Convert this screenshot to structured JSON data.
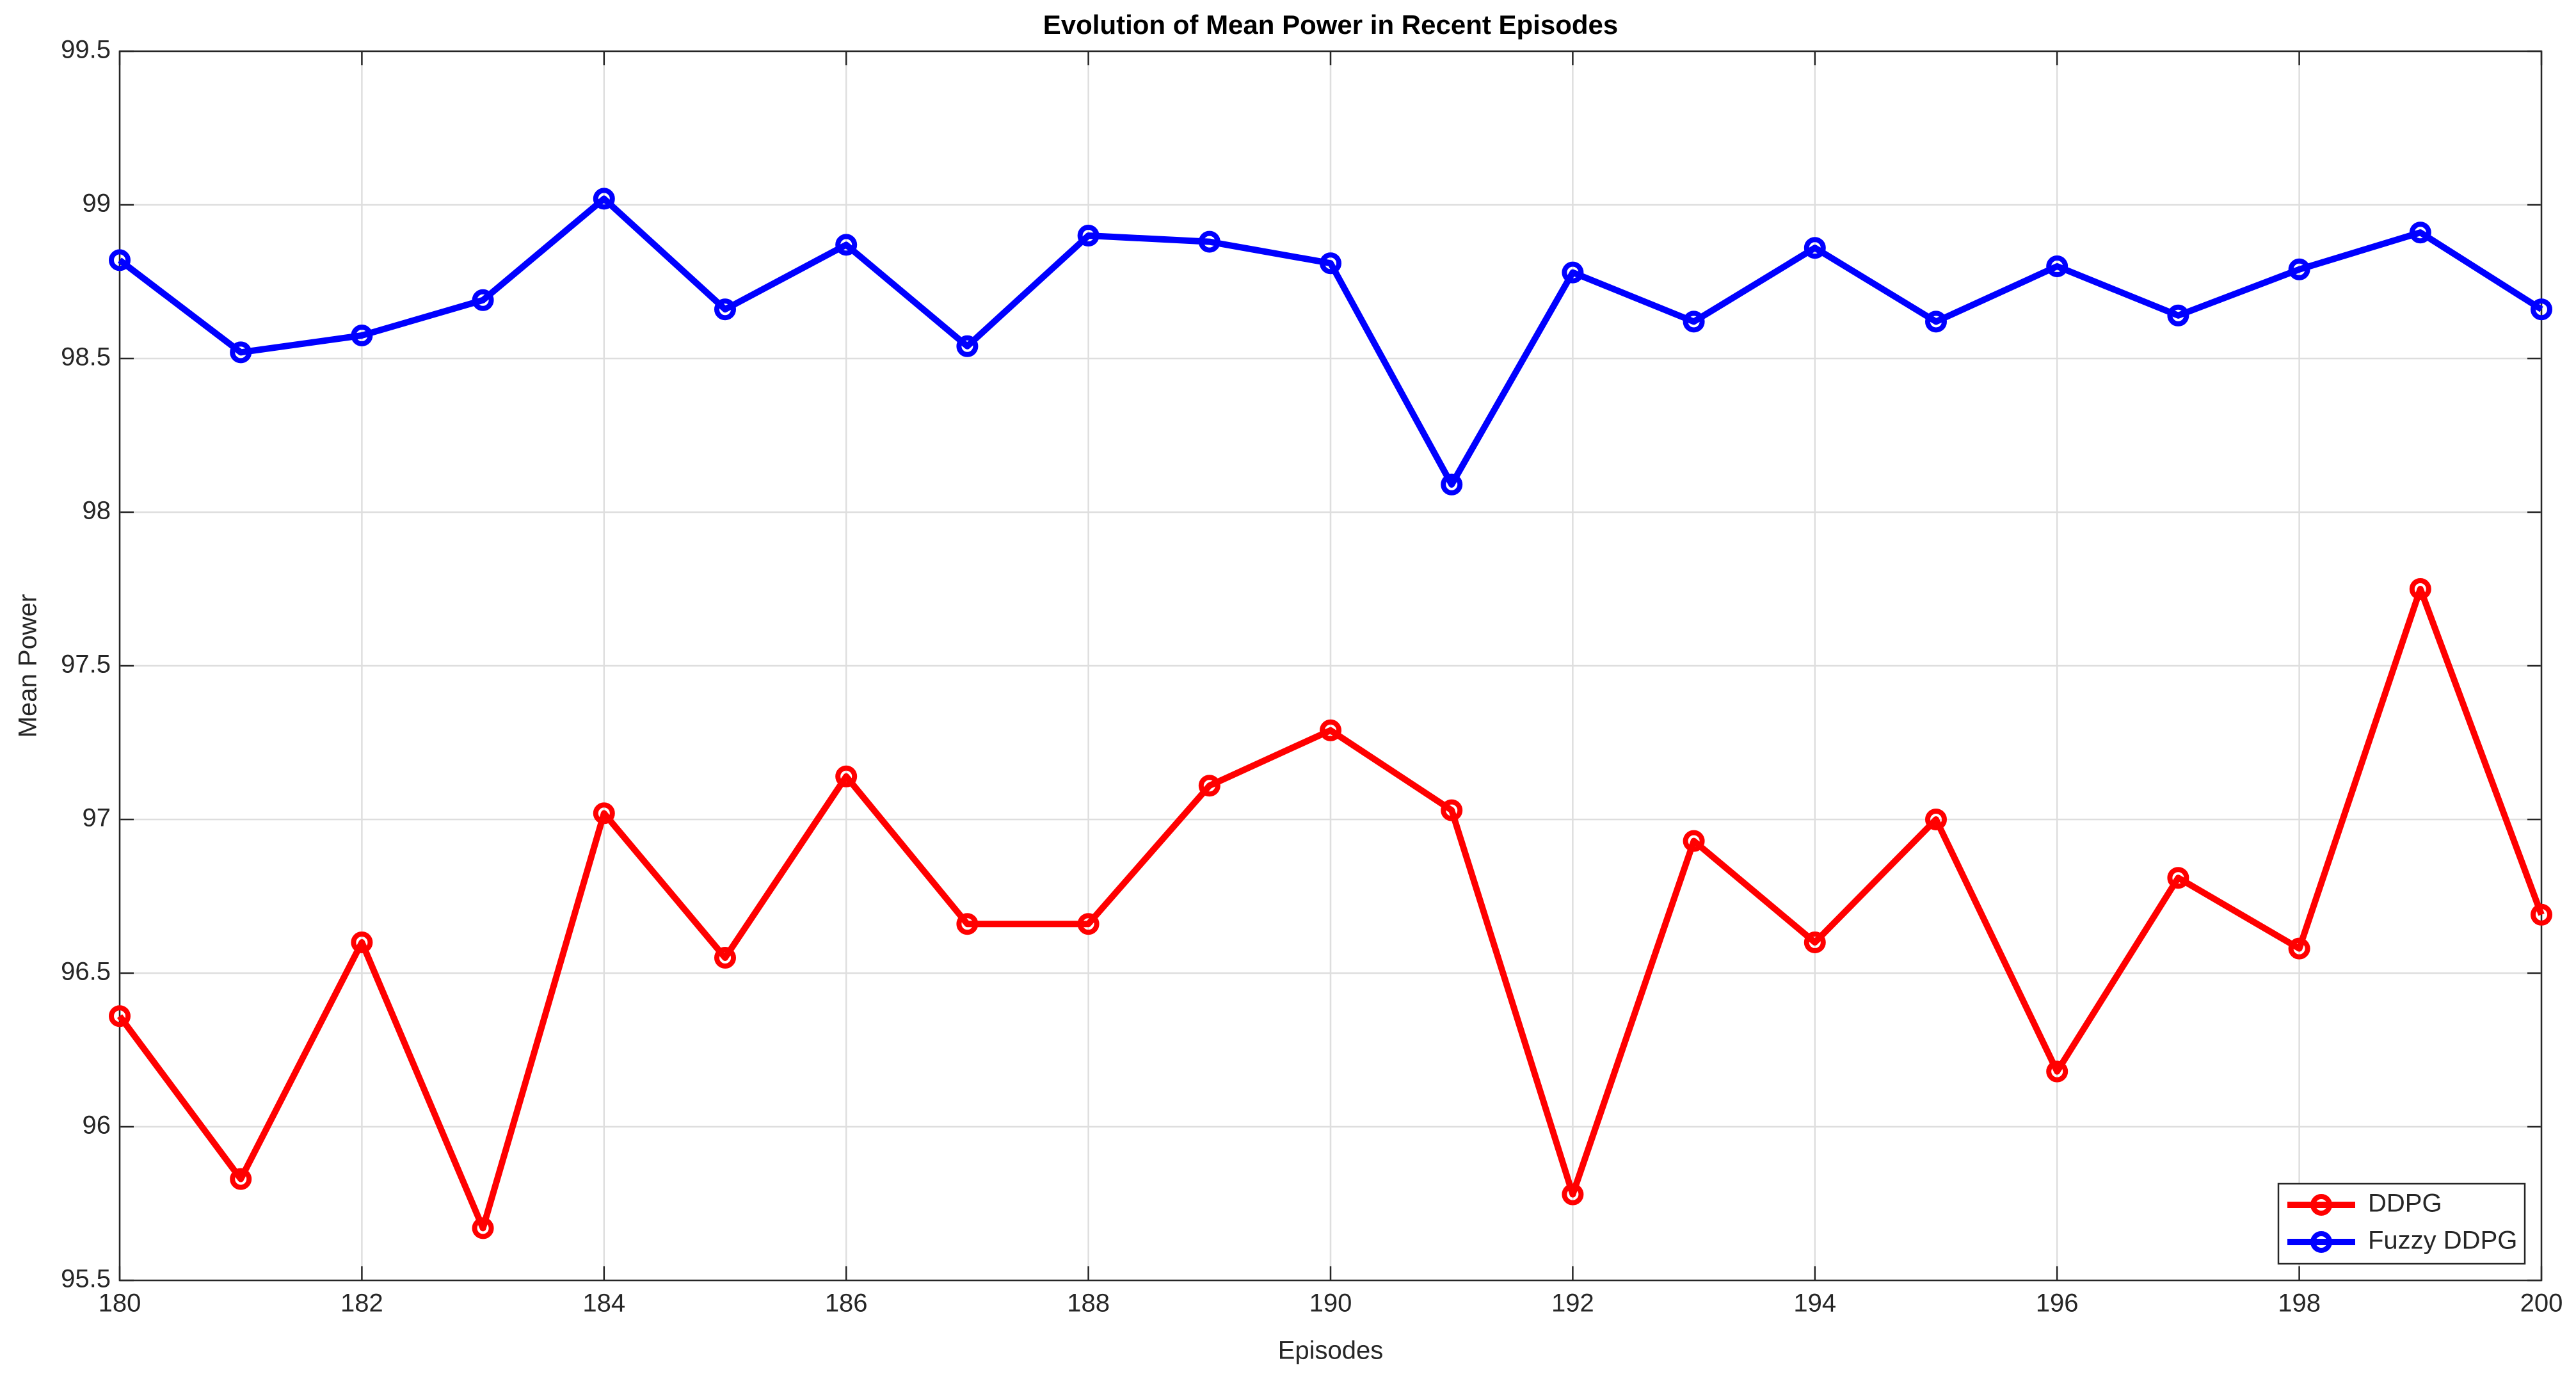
{
  "chart_data": {
    "type": "line",
    "title": "Evolution of Mean Power in Recent Episodes",
    "x_label": "Episodes",
    "y_label": "Mean Power",
    "x": [
      180,
      181,
      182,
      183,
      184,
      185,
      186,
      187,
      188,
      189,
      190,
      191,
      192,
      193,
      194,
      195,
      196,
      197,
      198,
      199,
      200
    ],
    "series": [
      {
        "name": "DDPG",
        "color": "#ff0000",
        "values": [
          96.36,
          95.83,
          96.6,
          95.67,
          97.02,
          96.55,
          97.14,
          96.66,
          96.66,
          97.11,
          97.29,
          97.03,
          95.78,
          96.93,
          96.6,
          97.0,
          96.18,
          96.81,
          96.58,
          97.75,
          96.69
        ]
      },
      {
        "name": "Fuzzy DDPG",
        "color": "#0000ff",
        "values": [
          98.82,
          98.52,
          98.575,
          98.69,
          99.02,
          98.66,
          98.87,
          98.54,
          98.9,
          98.88,
          98.81,
          98.09,
          98.78,
          98.62,
          98.86,
          98.62,
          98.8,
          98.64,
          98.79,
          98.91,
          98.66
        ]
      }
    ],
    "xlim": [
      180,
      200
    ],
    "xticks": [
      180,
      182,
      184,
      186,
      188,
      190,
      192,
      194,
      196,
      198,
      200
    ],
    "ylim": [
      95.5,
      99.5
    ],
    "yticks": [
      95.5,
      96,
      96.5,
      97,
      97.5,
      98,
      98.5,
      99,
      99.5
    ],
    "grid": true,
    "legend": "lower right"
  }
}
